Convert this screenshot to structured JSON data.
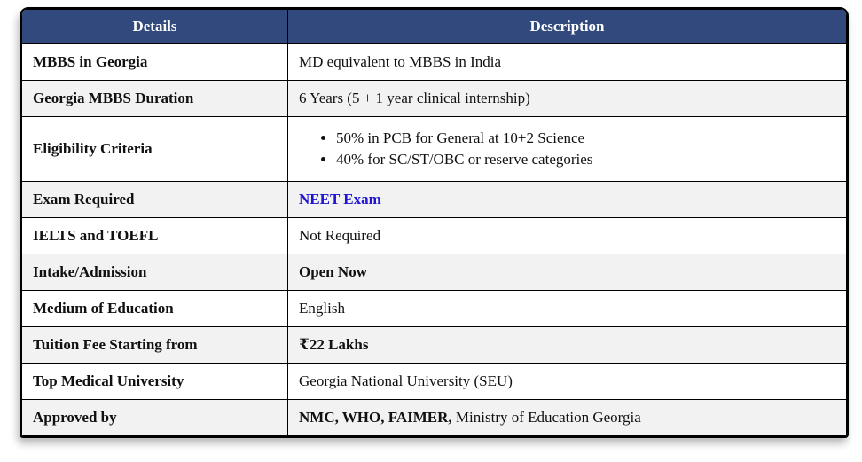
{
  "colors": {
    "header_bg": "#31497C",
    "row_alt": "#F2F2F2",
    "link_blue": "#1E14D2",
    "border": "#000000"
  },
  "table": {
    "headers": [
      "Details",
      "Description"
    ],
    "rows": [
      {
        "detail": "MBBS in Georgia",
        "description": "MD equivalent to MBBS in India"
      },
      {
        "detail": "Georgia MBBS Duration",
        "description": "6 Years (5 + 1 year clinical internship)"
      },
      {
        "detail": "Eligibility Criteria",
        "bullets": [
          "50% in PCB for General at 10+2 Science",
          "40% for SC/ST/OBC or reserve categories"
        ]
      },
      {
        "detail": "Exam Required",
        "description": "NEET Exam"
      },
      {
        "detail": "IELTS and TOEFL",
        "description": "Not Required"
      },
      {
        "detail": "Intake/Admission",
        "description": "Open Now"
      },
      {
        "detail": "Medium of Education",
        "description": "English"
      },
      {
        "detail": "Tuition Fee Starting from",
        "description": "₹22 Lakhs"
      },
      {
        "detail": "Top Medical University",
        "description": "Georgia National University (SEU)"
      },
      {
        "detail": "Approved by",
        "description_bold": "NMC, WHO, FAIMER,",
        "description_rest": " Ministry of Education Georgia"
      }
    ]
  }
}
